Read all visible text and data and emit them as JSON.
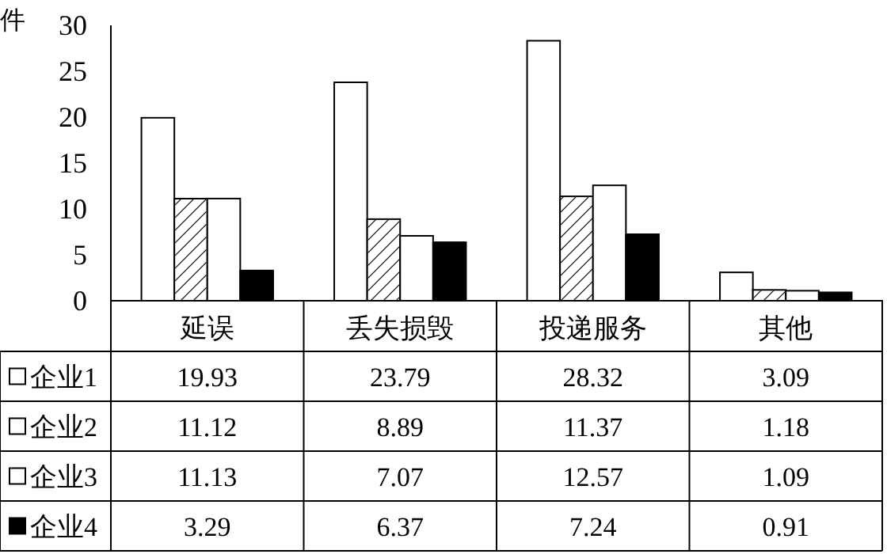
{
  "chart_data": {
    "type": "bar",
    "ylabel": "件",
    "categories": [
      "延误",
      "丢失损毁",
      "投递服务",
      "其他"
    ],
    "series": [
      {
        "name": "企业1",
        "color": "#ffffff",
        "values": [
          19.93,
          23.79,
          28.32,
          3.09
        ]
      },
      {
        "name": "企业2",
        "color": "#ffffff",
        "values": [
          11.12,
          8.89,
          11.37,
          1.18
        ]
      },
      {
        "name": "企业3",
        "color": "#ffffff",
        "values": [
          11.13,
          7.07,
          12.57,
          1.09
        ]
      },
      {
        "name": "企业4",
        "color": "#000000",
        "values": [
          3.29,
          6.37,
          7.24,
          0.91
        ]
      }
    ],
    "ylim": [
      0,
      30
    ],
    "yticks": [
      0,
      5,
      10,
      15,
      20,
      25,
      30
    ],
    "grid": false,
    "legend": "bottom left",
    "data_labels": true
  }
}
